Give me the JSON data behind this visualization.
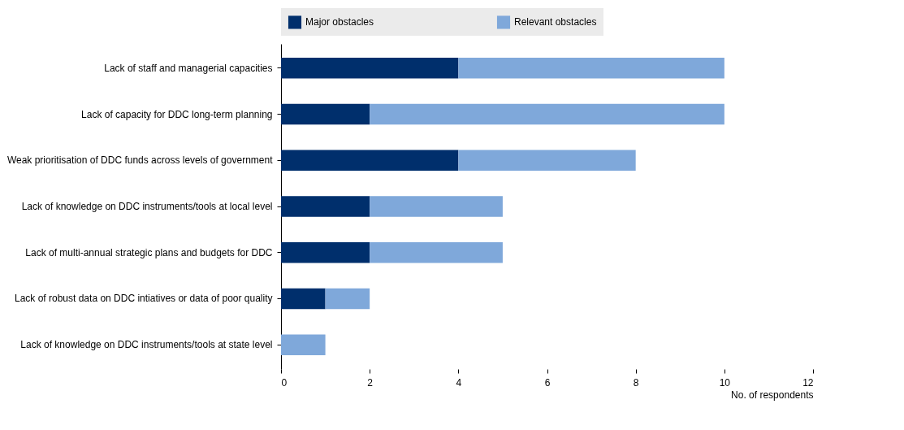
{
  "chart_data": {
    "type": "bar",
    "orientation": "horizontal",
    "stacked": true,
    "categories": [
      "Lack of staff and managerial capacities",
      "Lack of capacity for DDC long-term planning",
      "Weak prioritisation of DDC funds across levels of government",
      "Lack of knowledge on DDC instruments/tools at local level",
      "Lack of multi-annual strategic plans and budgets for DDC",
      "Lack of robust data on DDC intiatives or data of poor quality",
      "Lack of knowledge on DDC instruments/tools at state level"
    ],
    "series": [
      {
        "name": "Major obstacles",
        "color": "#002f6c",
        "values": [
          4,
          2,
          4,
          2,
          2,
          1,
          0
        ]
      },
      {
        "name": "Relevant obstacles",
        "color": "#7fa8da",
        "values": [
          6,
          8,
          4,
          3,
          3,
          1,
          1
        ]
      }
    ],
    "xlim": [
      0,
      12
    ],
    "xticks": [
      0,
      2,
      4,
      6,
      8,
      10,
      12
    ],
    "xlabel": "No. of respondents",
    "legend": "top",
    "grid": false
  }
}
